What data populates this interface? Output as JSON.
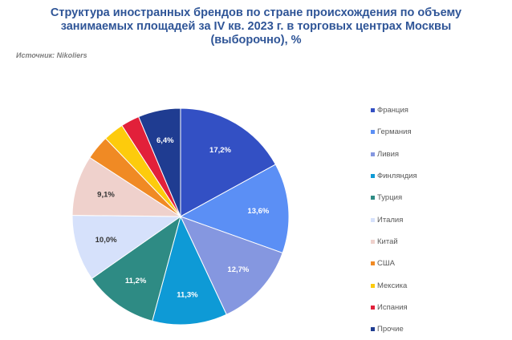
{
  "header": {
    "title_lines": [
      "Структура иностранных брендов по стране происхождения по объему",
      "занимаемых площадей за IV кв. 2023 г. в торговых центрах Москвы",
      "(выборочно), %"
    ],
    "source": "Источник: Nikoliers"
  },
  "chart_data": {
    "type": "pie",
    "title": "Структура иностранных брендов по стране происхождения по объему занимаемых площадей за IV кв. 2023 г. в торговых центрах Москвы (выборочно), %",
    "legend_position": "right",
    "start_angle_deg": 0,
    "direction": "clockwise",
    "slices": [
      {
        "label": "Франция",
        "value": 17.2,
        "data_label": "17,2%",
        "color": "#3350c4",
        "label_color": "#ffffff"
      },
      {
        "label": "Германия",
        "value": 13.6,
        "data_label": "13,6%",
        "color": "#5b8ff5",
        "label_color": "#ffffff"
      },
      {
        "label": "Ливия",
        "value": 12.7,
        "data_label": "12,7%",
        "color": "#8597e0",
        "label_color": "#ffffff"
      },
      {
        "label": "Финляндия",
        "value": 11.3,
        "data_label": "11,3%",
        "color": "#0e9ad6",
        "label_color": "#ffffff"
      },
      {
        "label": "Турция",
        "value": 11.2,
        "data_label": "11,2%",
        "color": "#2e8b84",
        "label_color": "#ffffff"
      },
      {
        "label": "Италия",
        "value": 10.0,
        "data_label": "10,0%",
        "color": "#d6e1fb",
        "label_color": "#333333"
      },
      {
        "label": "Китай",
        "value": 9.1,
        "data_label": "9,1%",
        "color": "#efd1cc",
        "label_color": "#333333"
      },
      {
        "label": "США",
        "value": 3.7,
        "data_label": "",
        "color": "#f08a24",
        "label_color": "#333333"
      },
      {
        "label": "Мексика",
        "value": 3.1,
        "data_label": "",
        "color": "#fdcb0c",
        "label_color": "#333333"
      },
      {
        "label": "Испания",
        "value": 2.8,
        "data_label": "",
        "color": "#e2203a",
        "label_color": "#333333"
      },
      {
        "label": "Прочие",
        "value": 6.4,
        "data_label": "6,4%",
        "color": "#1f3c91",
        "label_color": "#ffffff"
      }
    ]
  }
}
